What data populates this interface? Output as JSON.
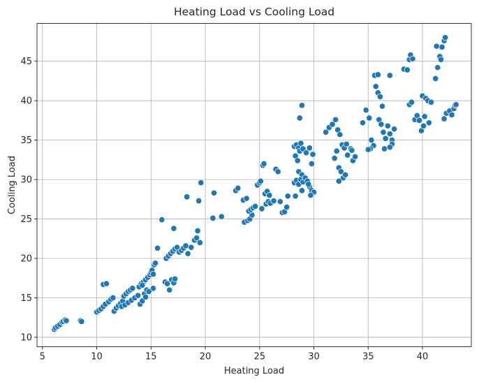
{
  "chart_data": {
    "type": "scatter",
    "title": "Heating Load vs Cooling Load",
    "xlabel": "Heating Load",
    "ylabel": "Cooling Load",
    "xlim": [
      4.5,
      44.5
    ],
    "ylim": [
      8.8,
      49.8
    ],
    "x_ticks": [
      5,
      10,
      15,
      20,
      25,
      30,
      35,
      40
    ],
    "y_ticks": [
      10,
      15,
      20,
      25,
      30,
      35,
      40,
      45
    ],
    "grid": true,
    "point_color": "#1f77b4",
    "points": [
      [
        6.1,
        11.0
      ],
      [
        6.2,
        11.2
      ],
      [
        6.4,
        11.4
      ],
      [
        6.6,
        11.6
      ],
      [
        6.8,
        11.9
      ],
      [
        6.9,
        12.0
      ],
      [
        7.1,
        12.2
      ],
      [
        7.2,
        12.1
      ],
      [
        8.5,
        12.1
      ],
      [
        8.6,
        12.0
      ],
      [
        10.0,
        13.2
      ],
      [
        10.2,
        13.4
      ],
      [
        10.4,
        13.6
      ],
      [
        10.6,
        13.9
      ],
      [
        10.8,
        14.2
      ],
      [
        10.6,
        16.7
      ],
      [
        10.9,
        16.8
      ],
      [
        11.1,
        14.5
      ],
      [
        11.3,
        14.8
      ],
      [
        11.5,
        15.0
      ],
      [
        11.6,
        13.3
      ],
      [
        11.8,
        13.7
      ],
      [
        12.0,
        14.0
      ],
      [
        12.2,
        14.3
      ],
      [
        12.4,
        14.6
      ],
      [
        12.5,
        15.2
      ],
      [
        12.7,
        15.5
      ],
      [
        12.9,
        15.8
      ],
      [
        13.1,
        16.0
      ],
      [
        13.3,
        16.2
      ],
      [
        12.3,
        13.9
      ],
      [
        12.6,
        14.1
      ],
      [
        12.9,
        14.4
      ],
      [
        13.2,
        14.7
      ],
      [
        13.5,
        15.0
      ],
      [
        13.8,
        15.3
      ],
      [
        14.0,
        14.2
      ],
      [
        14.2,
        14.6
      ],
      [
        14.4,
        15.5
      ],
      [
        14.6,
        16.0
      ],
      [
        13.9,
        16.4
      ],
      [
        14.1,
        16.8
      ],
      [
        14.3,
        17.0
      ],
      [
        14.5,
        17.3
      ],
      [
        14.7,
        17.6
      ],
      [
        14.9,
        17.9
      ],
      [
        15.0,
        18.2
      ],
      [
        15.1,
        18.5
      ],
      [
        15.2,
        18.0
      ],
      [
        15.3,
        19.2
      ],
      [
        15.4,
        19.4
      ],
      [
        15.2,
        16.2
      ],
      [
        14.8,
        15.8
      ],
      [
        14.5,
        15.1
      ],
      [
        14.2,
        16.6
      ],
      [
        15.6,
        21.3
      ],
      [
        16.0,
        24.9
      ],
      [
        16.3,
        17.0
      ],
      [
        16.5,
        16.8
      ],
      [
        16.7,
        16.0
      ],
      [
        16.9,
        17.3
      ],
      [
        17.1,
        16.9
      ],
      [
        17.2,
        17.4
      ],
      [
        16.4,
        20.0
      ],
      [
        16.6,
        20.3
      ],
      [
        16.8,
        20.6
      ],
      [
        17.0,
        20.9
      ],
      [
        17.2,
        21.2
      ],
      [
        17.4,
        21.4
      ],
      [
        17.6,
        20.8
      ],
      [
        17.8,
        21.0
      ],
      [
        18.0,
        21.3
      ],
      [
        18.2,
        21.6
      ],
      [
        18.4,
        20.6
      ],
      [
        18.7,
        21.4
      ],
      [
        19.0,
        22.3
      ],
      [
        19.2,
        22.6
      ],
      [
        19.5,
        22.0
      ],
      [
        19.3,
        23.5
      ],
      [
        17.1,
        23.8
      ],
      [
        18.3,
        27.8
      ],
      [
        19.6,
        29.6
      ],
      [
        19.4,
        27.3
      ],
      [
        20.8,
        28.3
      ],
      [
        20.7,
        25.1
      ],
      [
        21.5,
        25.3
      ],
      [
        22.8,
        28.6
      ],
      [
        23.0,
        28.9
      ],
      [
        23.5,
        27.4
      ],
      [
        23.8,
        27.6
      ],
      [
        23.6,
        24.6
      ],
      [
        23.9,
        24.8
      ],
      [
        24.1,
        25.0
      ],
      [
        24.3,
        25.5
      ],
      [
        24.0,
        26.0
      ],
      [
        24.2,
        26.2
      ],
      [
        24.4,
        26.4
      ],
      [
        24.6,
        26.6
      ],
      [
        24.8,
        29.3
      ],
      [
        25.0,
        29.6
      ],
      [
        25.1,
        29.8
      ],
      [
        25.3,
        31.8
      ],
      [
        25.4,
        32.0
      ],
      [
        25.5,
        28.2
      ],
      [
        25.7,
        28.5
      ],
      [
        25.9,
        28.0
      ],
      [
        25.2,
        26.3
      ],
      [
        25.6,
        26.9
      ],
      [
        25.8,
        27.2
      ],
      [
        26.0,
        27.0
      ],
      [
        26.3,
        27.3
      ],
      [
        26.5,
        31.3
      ],
      [
        26.7,
        31.0
      ],
      [
        26.9,
        27.2
      ],
      [
        27.1,
        25.8
      ],
      [
        27.3,
        25.9
      ],
      [
        27.5,
        26.5
      ],
      [
        27.6,
        27.9
      ],
      [
        28.2,
        34.2
      ],
      [
        28.4,
        34.4
      ],
      [
        28.6,
        34.0
      ],
      [
        28.8,
        34.6
      ],
      [
        28.3,
        33.0
      ],
      [
        28.5,
        32.4
      ],
      [
        28.7,
        33.6
      ],
      [
        29.0,
        33.9
      ],
      [
        29.3,
        33.4
      ],
      [
        29.6,
        34.0
      ],
      [
        29.9,
        33.2
      ],
      [
        29.8,
        32.0
      ],
      [
        28.6,
        31.0
      ],
      [
        28.9,
        30.6
      ],
      [
        28.2,
        29.6
      ],
      [
        28.4,
        29.9
      ],
      [
        28.6,
        29.4
      ],
      [
        28.8,
        30.0
      ],
      [
        29.0,
        29.7
      ],
      [
        29.2,
        30.2
      ],
      [
        29.4,
        29.8
      ],
      [
        29.6,
        29.1
      ],
      [
        29.8,
        28.6
      ],
      [
        30.0,
        28.4
      ],
      [
        29.7,
        28.0
      ],
      [
        29.5,
        29.4
      ],
      [
        28.3,
        27.9
      ],
      [
        28.9,
        28.6
      ],
      [
        28.7,
        37.8
      ],
      [
        28.9,
        39.4
      ],
      [
        31.1,
        36.0
      ],
      [
        31.4,
        36.6
      ],
      [
        31.7,
        37.0
      ],
      [
        32.0,
        37.6
      ],
      [
        32.2,
        36.3
      ],
      [
        32.4,
        35.7
      ],
      [
        32.6,
        34.4
      ],
      [
        32.8,
        34.0
      ],
      [
        32.1,
        33.6
      ],
      [
        31.9,
        32.7
      ],
      [
        32.3,
        31.5
      ],
      [
        32.5,
        31.0
      ],
      [
        32.7,
        30.2
      ],
      [
        32.9,
        30.6
      ],
      [
        33.1,
        33.1
      ],
      [
        33.4,
        33.9
      ],
      [
        33.6,
        32.4
      ],
      [
        33.8,
        32.9
      ],
      [
        33.0,
        34.5
      ],
      [
        32.3,
        29.8
      ],
      [
        33.5,
        33.7
      ],
      [
        34.5,
        37.2
      ],
      [
        34.8,
        38.8
      ],
      [
        35.1,
        37.8
      ],
      [
        35.3,
        35.0
      ],
      [
        35.5,
        34.3
      ],
      [
        35.7,
        41.8
      ],
      [
        35.9,
        41.0
      ],
      [
        35.6,
        43.2
      ],
      [
        35.9,
        43.3
      ],
      [
        36.1,
        40.5
      ],
      [
        36.0,
        37.6
      ],
      [
        36.2,
        37.0
      ],
      [
        36.4,
        36.0
      ],
      [
        36.6,
        35.2
      ],
      [
        36.8,
        36.8
      ],
      [
        37.0,
        35.8
      ],
      [
        37.2,
        35.0
      ],
      [
        37.4,
        36.4
      ],
      [
        37.2,
        34.5
      ],
      [
        36.5,
        33.9
      ],
      [
        37.0,
        34.1
      ],
      [
        35.2,
        33.9
      ],
      [
        35.0,
        33.8
      ],
      [
        36.3,
        39.3
      ],
      [
        37.0,
        43.2
      ],
      [
        38.3,
        44.0
      ],
      [
        38.6,
        43.9
      ],
      [
        38.8,
        45.2
      ],
      [
        38.9,
        45.8
      ],
      [
        39.1,
        45.3
      ],
      [
        38.8,
        39.5
      ],
      [
        39.0,
        39.8
      ],
      [
        39.3,
        37.6
      ],
      [
        39.5,
        38.1
      ],
      [
        39.7,
        37.5
      ],
      [
        39.9,
        36.2
      ],
      [
        40.1,
        36.8
      ],
      [
        40.0,
        40.6
      ],
      [
        40.3,
        40.3
      ],
      [
        40.5,
        40.0
      ],
      [
        40.8,
        39.8
      ],
      [
        40.6,
        37.2
      ],
      [
        40.2,
        38.0
      ],
      [
        41.2,
        42.8
      ],
      [
        41.4,
        44.2
      ],
      [
        41.6,
        45.6
      ],
      [
        41.8,
        46.8
      ],
      [
        42.0,
        47.6
      ],
      [
        42.1,
        48.0
      ],
      [
        41.3,
        46.9
      ],
      [
        41.7,
        45.2
      ],
      [
        42.0,
        37.7
      ],
      [
        42.2,
        38.4
      ],
      [
        42.5,
        38.7
      ],
      [
        42.7,
        38.2
      ],
      [
        42.9,
        39.0
      ],
      [
        43.0,
        39.4
      ],
      [
        43.1,
        39.5
      ]
    ]
  }
}
